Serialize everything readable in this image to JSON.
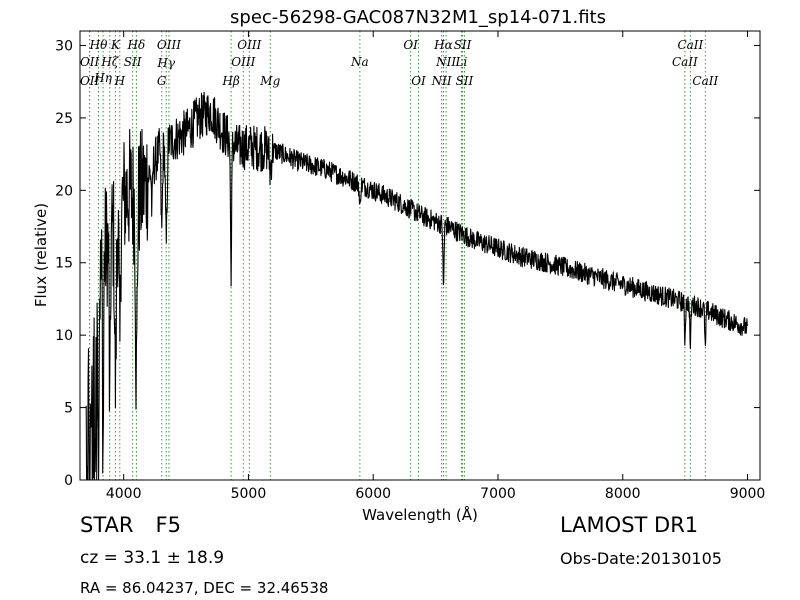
{
  "chart_data": {
    "type": "line",
    "title": "spec-56298-GAC087N32M1_sp14-071.fits",
    "xlabel": "Wavelength (Å)",
    "ylabel": "Flux (relative)",
    "xlim": [
      3650,
      9100
    ],
    "ylim": [
      0,
      31
    ],
    "xticks": [
      4000,
      5000,
      6000,
      7000,
      8000,
      9000
    ],
    "yticks": [
      0,
      5,
      10,
      15,
      20,
      25,
      30
    ],
    "grid": false,
    "line_color": "#000000",
    "marker_color": "#2ca02c",
    "spectrum_anchors": [
      [
        3700,
        8
      ],
      [
        3750,
        14
      ],
      [
        3800,
        13
      ],
      [
        3850,
        16
      ],
      [
        3900,
        17
      ],
      [
        3950,
        18
      ],
      [
        4000,
        19.5
      ],
      [
        4050,
        20
      ],
      [
        4100,
        19
      ],
      [
        4200,
        21
      ],
      [
        4300,
        23
      ],
      [
        4400,
        23.5
      ],
      [
        4500,
        24
      ],
      [
        4600,
        25
      ],
      [
        4700,
        25.5
      ],
      [
        4800,
        24
      ],
      [
        4900,
        23
      ],
      [
        5000,
        23
      ],
      [
        5200,
        22.8
      ],
      [
        5400,
        22
      ],
      [
        5600,
        21.5
      ],
      [
        5800,
        20.8
      ],
      [
        6000,
        20
      ],
      [
        6200,
        19.2
      ],
      [
        6400,
        18.2
      ],
      [
        6600,
        17.5
      ],
      [
        6800,
        16.6
      ],
      [
        7000,
        16
      ],
      [
        7200,
        15.4
      ],
      [
        7400,
        15
      ],
      [
        7600,
        14.5
      ],
      [
        7800,
        14
      ],
      [
        8000,
        13.5
      ],
      [
        8200,
        13
      ],
      [
        8400,
        12.5
      ],
      [
        8600,
        12
      ],
      [
        8800,
        11.2
      ],
      [
        9000,
        10.5
      ]
    ],
    "absorption_features": [
      {
        "x": 3727,
        "depth": 10,
        "width": 6
      },
      {
        "x": 3750,
        "depth": 12,
        "width": 6
      },
      {
        "x": 3771,
        "depth": 13,
        "width": 5
      },
      {
        "x": 3798,
        "depth": 13,
        "width": 5
      },
      {
        "x": 3835,
        "depth": 13,
        "width": 6
      },
      {
        "x": 3889,
        "depth": 12,
        "width": 7
      },
      {
        "x": 3934,
        "depth": 11,
        "width": 9
      },
      {
        "x": 3969,
        "depth": 10,
        "width": 8
      },
      {
        "x": 4102,
        "depth": 12,
        "width": 9
      },
      {
        "x": 4227,
        "depth": 3,
        "width": 6
      },
      {
        "x": 4305,
        "depth": 6,
        "width": 8
      },
      {
        "x": 4341,
        "depth": 7,
        "width": 9
      },
      {
        "x": 4861,
        "depth": 8.5,
        "width": 7
      },
      {
        "x": 5175,
        "depth": 1.5,
        "width": 10
      },
      {
        "x": 5893,
        "depth": 1.8,
        "width": 6
      },
      {
        "x": 6563,
        "depth": 4.5,
        "width": 6
      },
      {
        "x": 8498,
        "depth": 2.5,
        "width": 6
      },
      {
        "x": 8542,
        "depth": 3,
        "width": 6
      },
      {
        "x": 8662,
        "depth": 2.8,
        "width": 6
      }
    ],
    "line_markers": [
      {
        "label": "OII",
        "x": 3727,
        "row": 2
      },
      {
        "label": "Hθ",
        "x": 3798,
        "row": 0
      },
      {
        "label": "Hη",
        "x": 3835,
        "row": 3
      },
      {
        "label": "Hζ",
        "x": 3889,
        "row": 2
      },
      {
        "label": "OII",
        "x": 3727,
        "row": 4
      },
      {
        "label": "K",
        "x": 3934,
        "row": 0
      },
      {
        "label": "H",
        "x": 3969,
        "row": 4
      },
      {
        "label": "SII",
        "x": 4072,
        "row": 2
      },
      {
        "label": "Hδ",
        "x": 4102,
        "row": 0
      },
      {
        "label": "OIII",
        "x": 4363,
        "row": 0
      },
      {
        "label": "Hγ",
        "x": 4341,
        "row": 1
      },
      {
        "label": "G",
        "x": 4305,
        "row": 4
      },
      {
        "label": "Hβ",
        "x": 4861,
        "row": 4
      },
      {
        "label": "OIII",
        "x": 5007,
        "row": 0
      },
      {
        "label": "OIII",
        "x": 4959,
        "row": 2
      },
      {
        "label": "Mg",
        "x": 5175,
        "row": 4
      },
      {
        "label": "Na",
        "x": 5893,
        "row": 2
      },
      {
        "label": "OI",
        "x": 6300,
        "row": 0
      },
      {
        "label": "OI",
        "x": 6363,
        "row": 4
      },
      {
        "label": "Hα",
        "x": 6563,
        "row": 0
      },
      {
        "label": "SII",
        "x": 6716,
        "row": 0
      },
      {
        "label": "NII",
        "x": 6584,
        "row": 2
      },
      {
        "label": "Li",
        "x": 6707,
        "row": 2
      },
      {
        "label": "NII",
        "x": 6548,
        "row": 4
      },
      {
        "label": "SII",
        "x": 6731,
        "row": 4
      },
      {
        "label": "CaII",
        "x": 8542,
        "row": 0
      },
      {
        "label": "CaII",
        "x": 8498,
        "row": 2
      },
      {
        "label": "CaII",
        "x": 8662,
        "row": 4
      }
    ]
  },
  "info": {
    "object_class": "STAR",
    "subclass": "F5",
    "cz": "cz = 33.1 ± 18.9",
    "radec": "RA = 86.04237, DEC = 32.46538",
    "survey": "LAMOST DR1",
    "obs_date": "Obs-Date:20130105"
  }
}
